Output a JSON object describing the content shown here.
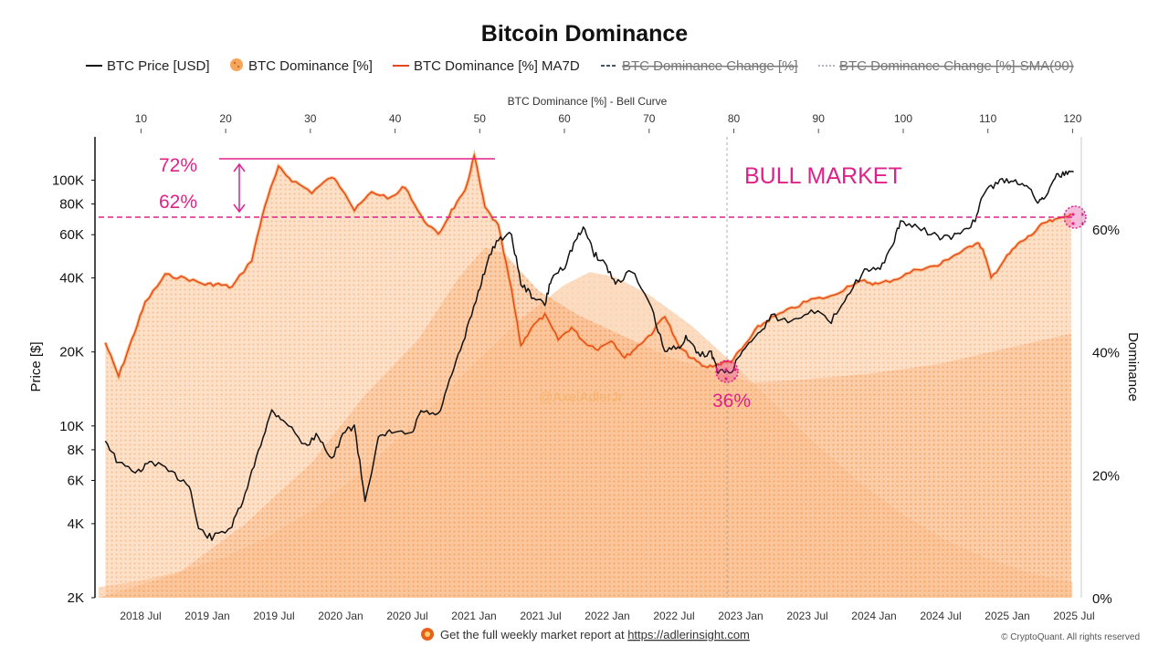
{
  "chart_data": {
    "type": "line",
    "title": "Bitcoin Dominance",
    "legend": [
      {
        "label": "BTC Price [USD]",
        "color": "#111111",
        "style": "line"
      },
      {
        "label": "BTC Dominance [%]",
        "color": "#f5a65b",
        "style": "dot"
      },
      {
        "label": "BTC Dominance [%] MA7D",
        "color": "#e8461c",
        "style": "line"
      },
      {
        "label": "BTC Dominance Change [%]",
        "color": "#4a4f6a",
        "style": "dash",
        "hidden": true
      },
      {
        "label": "BTC Dominance Change [%]-SMA(90)",
        "color": "#b0b3c0",
        "style": "dot",
        "hidden": true
      }
    ],
    "x_axis": {
      "ticks": [
        "2018 Jul",
        "2019 Jan",
        "2019 Jul",
        "2020 Jan",
        "2020 Jul",
        "2021 Jan",
        "2021 Jul",
        "2022 Jan",
        "2022 Jul",
        "2023 Jan",
        "2023 Jul",
        "2024 Jan",
        "2024 Jul",
        "2025 Jan",
        "2025 Jul"
      ],
      "range": [
        2018.2,
        2025.55
      ]
    },
    "top_axis": {
      "label": "BTC Dominance [%] - Bell Curve",
      "ticks": [
        10,
        20,
        30,
        40,
        50,
        60,
        70,
        80,
        90,
        100,
        110,
        120
      ],
      "range": [
        5,
        120.6
      ]
    },
    "left_axis": {
      "label": "Price [$]",
      "scale": "log",
      "range": [
        2000,
        150000
      ],
      "tick_values": [
        100000,
        80000,
        60000,
        40000,
        20000,
        10000,
        8000,
        6000,
        4000,
        2000
      ],
      "tick_labels": [
        "100K",
        "80K",
        "60K",
        "40K",
        "20K",
        "10K",
        "8K",
        "6K",
        "4K",
        "2K"
      ]
    },
    "right_axis": {
      "label": "Dominance",
      "range": [
        0,
        75
      ],
      "tick_values": [
        60,
        40,
        20,
        0
      ],
      "tick_labels": [
        "60%",
        "40%",
        "20%",
        "0%"
      ]
    },
    "series": [
      {
        "name": "BTC Price [USD]",
        "color": "#111111",
        "points": [
          [
            2018.25,
            8800
          ],
          [
            2018.35,
            7000
          ],
          [
            2018.5,
            6500
          ],
          [
            2018.6,
            7200
          ],
          [
            2018.75,
            6400
          ],
          [
            2018.88,
            5800
          ],
          [
            2018.95,
            3800
          ],
          [
            2019.05,
            3500
          ],
          [
            2019.2,
            3900
          ],
          [
            2019.3,
            5200
          ],
          [
            2019.4,
            8000
          ],
          [
            2019.5,
            11500
          ],
          [
            2019.6,
            10500
          ],
          [
            2019.75,
            8300
          ],
          [
            2019.85,
            9200
          ],
          [
            2019.95,
            7300
          ],
          [
            2020.05,
            9500
          ],
          [
            2020.12,
            10000
          ],
          [
            2020.2,
            5000
          ],
          [
            2020.3,
            8800
          ],
          [
            2020.4,
            9500
          ],
          [
            2020.55,
            9200
          ],
          [
            2020.62,
            11500
          ],
          [
            2020.75,
            11000
          ],
          [
            2020.85,
            16000
          ],
          [
            2020.95,
            23000
          ],
          [
            2021.05,
            35000
          ],
          [
            2021.12,
            47000
          ],
          [
            2021.2,
            58000
          ],
          [
            2021.3,
            60000
          ],
          [
            2021.37,
            38000
          ],
          [
            2021.45,
            34000
          ],
          [
            2021.55,
            31000
          ],
          [
            2021.6,
            40000
          ],
          [
            2021.7,
            45000
          ],
          [
            2021.78,
            57000
          ],
          [
            2021.85,
            64000
          ],
          [
            2021.92,
            50000
          ],
          [
            2022.0,
            46000
          ],
          [
            2022.08,
            38000
          ],
          [
            2022.2,
            43000
          ],
          [
            2022.35,
            30000
          ],
          [
            2022.45,
            20000
          ],
          [
            2022.55,
            21000
          ],
          [
            2022.62,
            23000
          ],
          [
            2022.7,
            19500
          ],
          [
            2022.8,
            19800
          ],
          [
            2022.85,
            16500
          ],
          [
            2022.95,
            16700
          ],
          [
            2023.05,
            21000
          ],
          [
            2023.15,
            23500
          ],
          [
            2023.25,
            28000
          ],
          [
            2023.4,
            26500
          ],
          [
            2023.55,
            30000
          ],
          [
            2023.7,
            26500
          ],
          [
            2023.82,
            34500
          ],
          [
            2023.95,
            42500
          ],
          [
            2024.05,
            43000
          ],
          [
            2024.15,
            52000
          ],
          [
            2024.22,
            68000
          ],
          [
            2024.35,
            64000
          ],
          [
            2024.5,
            59000
          ],
          [
            2024.6,
            58000
          ],
          [
            2024.68,
            62000
          ],
          [
            2024.78,
            68000
          ],
          [
            2024.85,
            90000
          ],
          [
            2024.95,
            98000
          ],
          [
            2025.05,
            100000
          ],
          [
            2025.15,
            97000
          ],
          [
            2025.25,
            82000
          ],
          [
            2025.3,
            85000
          ],
          [
            2025.38,
            104000
          ],
          [
            2025.45,
            106000
          ],
          [
            2025.52,
            108000
          ]
        ]
      },
      {
        "name": "BTC Dominance [%] MA7D",
        "color": "#e8461c",
        "points": [
          [
            2018.25,
            41.5
          ],
          [
            2018.35,
            36
          ],
          [
            2018.45,
            42
          ],
          [
            2018.55,
            48
          ],
          [
            2018.7,
            52.5
          ],
          [
            2018.85,
            52
          ],
          [
            2019.0,
            51
          ],
          [
            2019.1,
            51
          ],
          [
            2019.2,
            50.5
          ],
          [
            2019.35,
            55
          ],
          [
            2019.45,
            64
          ],
          [
            2019.55,
            70
          ],
          [
            2019.65,
            68
          ],
          [
            2019.8,
            66
          ],
          [
            2019.95,
            68.5
          ],
          [
            2020.05,
            66
          ],
          [
            2020.12,
            63
          ],
          [
            2020.25,
            66
          ],
          [
            2020.4,
            65
          ],
          [
            2020.5,
            67
          ],
          [
            2020.62,
            62
          ],
          [
            2020.75,
            59
          ],
          [
            2020.85,
            63
          ],
          [
            2020.95,
            66
          ],
          [
            2021.02,
            72
          ],
          [
            2021.1,
            63.5
          ],
          [
            2021.2,
            60.5
          ],
          [
            2021.3,
            50
          ],
          [
            2021.37,
            41
          ],
          [
            2021.45,
            44
          ],
          [
            2021.55,
            46
          ],
          [
            2021.65,
            42
          ],
          [
            2021.75,
            44
          ],
          [
            2021.85,
            41.5
          ],
          [
            2021.95,
            40.5
          ],
          [
            2022.05,
            42
          ],
          [
            2022.15,
            39
          ],
          [
            2022.25,
            41
          ],
          [
            2022.35,
            43
          ],
          [
            2022.45,
            46
          ],
          [
            2022.55,
            41
          ],
          [
            2022.65,
            39
          ],
          [
            2022.75,
            37.5
          ],
          [
            2022.85,
            38
          ],
          [
            2022.95,
            38.5
          ],
          [
            2023.05,
            41
          ],
          [
            2023.15,
            44
          ],
          [
            2023.25,
            45.5
          ],
          [
            2023.4,
            47
          ],
          [
            2023.55,
            48.5
          ],
          [
            2023.7,
            49
          ],
          [
            2023.85,
            51
          ],
          [
            2023.95,
            51.5
          ],
          [
            2024.05,
            51
          ],
          [
            2024.2,
            52
          ],
          [
            2024.35,
            53.5
          ],
          [
            2024.5,
            54
          ],
          [
            2024.6,
            55.5
          ],
          [
            2024.7,
            56.5
          ],
          [
            2024.8,
            58
          ],
          [
            2024.85,
            56
          ],
          [
            2024.9,
            52
          ],
          [
            2025.0,
            55
          ],
          [
            2025.1,
            57.5
          ],
          [
            2025.2,
            59
          ],
          [
            2025.3,
            61
          ],
          [
            2025.4,
            61.5
          ],
          [
            2025.5,
            62.5
          ]
        ]
      },
      {
        "name": "BTC Dominance [%]",
        "color": "#f5a65b",
        "fill": "area",
        "same_as": "BTC Dominance [%] MA7D"
      },
      {
        "name": "BTC Dominance [%] - Bell Curve",
        "color": "#f6b98a",
        "fill": "area",
        "points": [
          [
            5,
            1.7
          ],
          [
            10,
            2.8
          ],
          [
            15,
            4.4
          ],
          [
            20,
            6.7
          ],
          [
            25,
            9.9
          ],
          [
            30,
            14.1
          ],
          [
            35,
            19.3
          ],
          [
            40,
            25.4
          ],
          [
            45,
            32.1
          ],
          [
            50,
            39.0
          ],
          [
            55,
            45.5
          ],
          [
            60,
            50.9
          ],
          [
            63,
            53
          ],
          [
            66,
            52.2
          ],
          [
            70,
            49.3
          ],
          [
            75,
            44.3
          ],
          [
            80,
            38.0
          ],
          [
            85,
            31.2
          ],
          [
            90,
            24.6
          ],
          [
            95,
            18.6
          ],
          [
            100,
            13.5
          ],
          [
            105,
            9.4
          ],
          [
            110,
            6.3
          ],
          [
            115,
            4.0
          ],
          [
            120,
            2.5
          ]
        ]
      },
      {
        "name": "Dominance trend",
        "color": "#f29a60",
        "fill": "area",
        "points": [
          [
            2018.2,
            0
          ],
          [
            2018.8,
            4
          ],
          [
            2019.3,
            12
          ],
          [
            2019.8,
            22
          ],
          [
            2020.2,
            33
          ],
          [
            2020.6,
            42
          ],
          [
            2020.9,
            52
          ],
          [
            2021.1,
            57
          ],
          [
            2021.25,
            56
          ],
          [
            2021.5,
            50
          ],
          [
            2021.8,
            46
          ],
          [
            2022.2,
            42
          ],
          [
            2022.5,
            39
          ],
          [
            2022.8,
            37
          ],
          [
            2023.1,
            35
          ],
          [
            2023.5,
            35.5
          ],
          [
            2024.0,
            36.5
          ],
          [
            2024.5,
            38
          ],
          [
            2025.0,
            40.5
          ],
          [
            2025.5,
            43
          ]
        ]
      }
    ],
    "annotations": {
      "top_level": "72%",
      "ref_level": "62%",
      "low_level": "36%",
      "phase": "BULL MARKET",
      "watermark": "@AxelAdlerJr"
    }
  },
  "footer": {
    "text": "Get the full weekly market report at ",
    "link": "https://adlerinsight.com",
    "copyright": "© CryptoQuant. All rights reserved"
  },
  "colors": {
    "accent": "#e0218a",
    "price": "#111111",
    "ma7d": "#e8461c",
    "dominance_fill": "#f5a65b"
  }
}
